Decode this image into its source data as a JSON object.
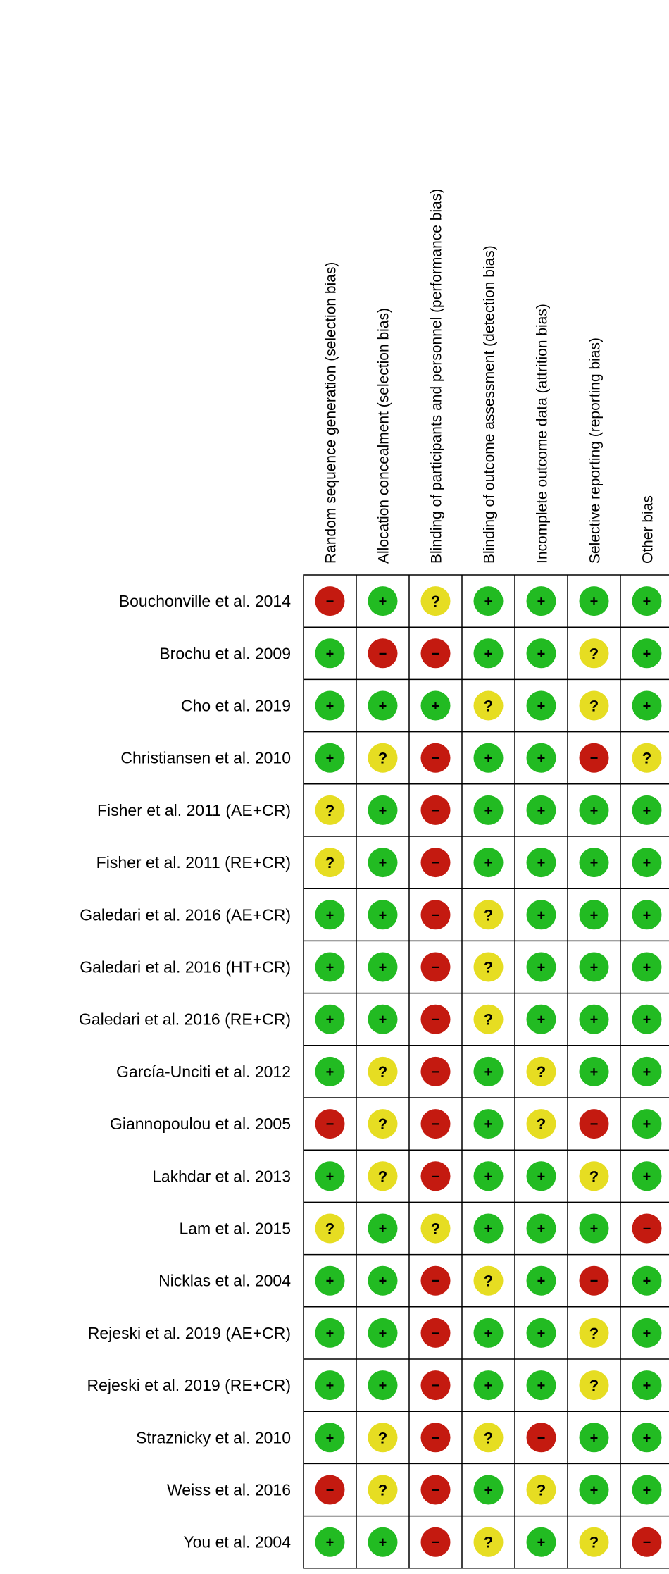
{
  "chart_data": {
    "type": "table",
    "columns": [
      "Random sequence generation (selection bias)",
      "Allocation concealment (selection bias)",
      "Blinding of participants and personnel (performance bias)",
      "Blinding of outcome assessment (detection bias)",
      "Incomplete outcome data (attrition bias)",
      "Selective reporting (reporting bias)",
      "Other bias"
    ],
    "rows": [
      {
        "study": "Bouchonville et al. 2014",
        "ratings": [
          "high",
          "low",
          "unclear",
          "low",
          "low",
          "low",
          "low"
        ]
      },
      {
        "study": "Brochu et al. 2009",
        "ratings": [
          "low",
          "high",
          "high",
          "low",
          "low",
          "unclear",
          "low"
        ]
      },
      {
        "study": "Cho et al. 2019",
        "ratings": [
          "low",
          "low",
          "low",
          "unclear",
          "low",
          "unclear",
          "low"
        ]
      },
      {
        "study": "Christiansen et al. 2010",
        "ratings": [
          "low",
          "unclear",
          "high",
          "low",
          "low",
          "high",
          "unclear"
        ]
      },
      {
        "study": "Fisher et al. 2011 (AE+CR)",
        "ratings": [
          "unclear",
          "low",
          "high",
          "low",
          "low",
          "low",
          "low"
        ]
      },
      {
        "study": "Fisher et al. 2011 (RE+CR)",
        "ratings": [
          "unclear",
          "low",
          "high",
          "low",
          "low",
          "low",
          "low"
        ]
      },
      {
        "study": "Galedari et al. 2016 (AE+CR)",
        "ratings": [
          "low",
          "low",
          "high",
          "unclear",
          "low",
          "low",
          "low"
        ]
      },
      {
        "study": "Galedari et al. 2016 (HT+CR)",
        "ratings": [
          "low",
          "low",
          "high",
          "unclear",
          "low",
          "low",
          "low"
        ]
      },
      {
        "study": "Galedari et al. 2016 (RE+CR)",
        "ratings": [
          "low",
          "low",
          "high",
          "unclear",
          "low",
          "low",
          "low"
        ]
      },
      {
        "study": "García-Unciti et al. 2012",
        "ratings": [
          "low",
          "unclear",
          "high",
          "low",
          "unclear",
          "low",
          "low"
        ]
      },
      {
        "study": "Giannopoulou et al. 2005",
        "ratings": [
          "high",
          "unclear",
          "high",
          "low",
          "unclear",
          "high",
          "low"
        ]
      },
      {
        "study": "Lakhdar et al. 2013",
        "ratings": [
          "low",
          "unclear",
          "high",
          "low",
          "low",
          "unclear",
          "low"
        ]
      },
      {
        "study": "Lam et al. 2015",
        "ratings": [
          "unclear",
          "low",
          "unclear",
          "low",
          "low",
          "low",
          "high"
        ]
      },
      {
        "study": "Nicklas et al. 2004",
        "ratings": [
          "low",
          "low",
          "high",
          "unclear",
          "low",
          "high",
          "low"
        ]
      },
      {
        "study": "Rejeski et al. 2019 (AE+CR)",
        "ratings": [
          "low",
          "low",
          "high",
          "low",
          "low",
          "unclear",
          "low"
        ]
      },
      {
        "study": "Rejeski et al. 2019 (RE+CR)",
        "ratings": [
          "low",
          "low",
          "high",
          "low",
          "low",
          "unclear",
          "low"
        ]
      },
      {
        "study": "Straznicky et al. 2010",
        "ratings": [
          "low",
          "unclear",
          "high",
          "unclear",
          "high",
          "low",
          "low"
        ]
      },
      {
        "study": "Weiss et al. 2016",
        "ratings": [
          "high",
          "unclear",
          "high",
          "low",
          "unclear",
          "low",
          "low"
        ]
      },
      {
        "study": "You et al. 2004",
        "ratings": [
          "low",
          "low",
          "high",
          "unclear",
          "low",
          "unclear",
          "high"
        ]
      }
    ],
    "legend": {
      "low": {
        "symbol": "+",
        "color": "#22bb22"
      },
      "unclear": {
        "symbol": "?",
        "color": "#e6dd22"
      },
      "high": {
        "symbol": "−",
        "color": "#c41a10"
      }
    }
  }
}
